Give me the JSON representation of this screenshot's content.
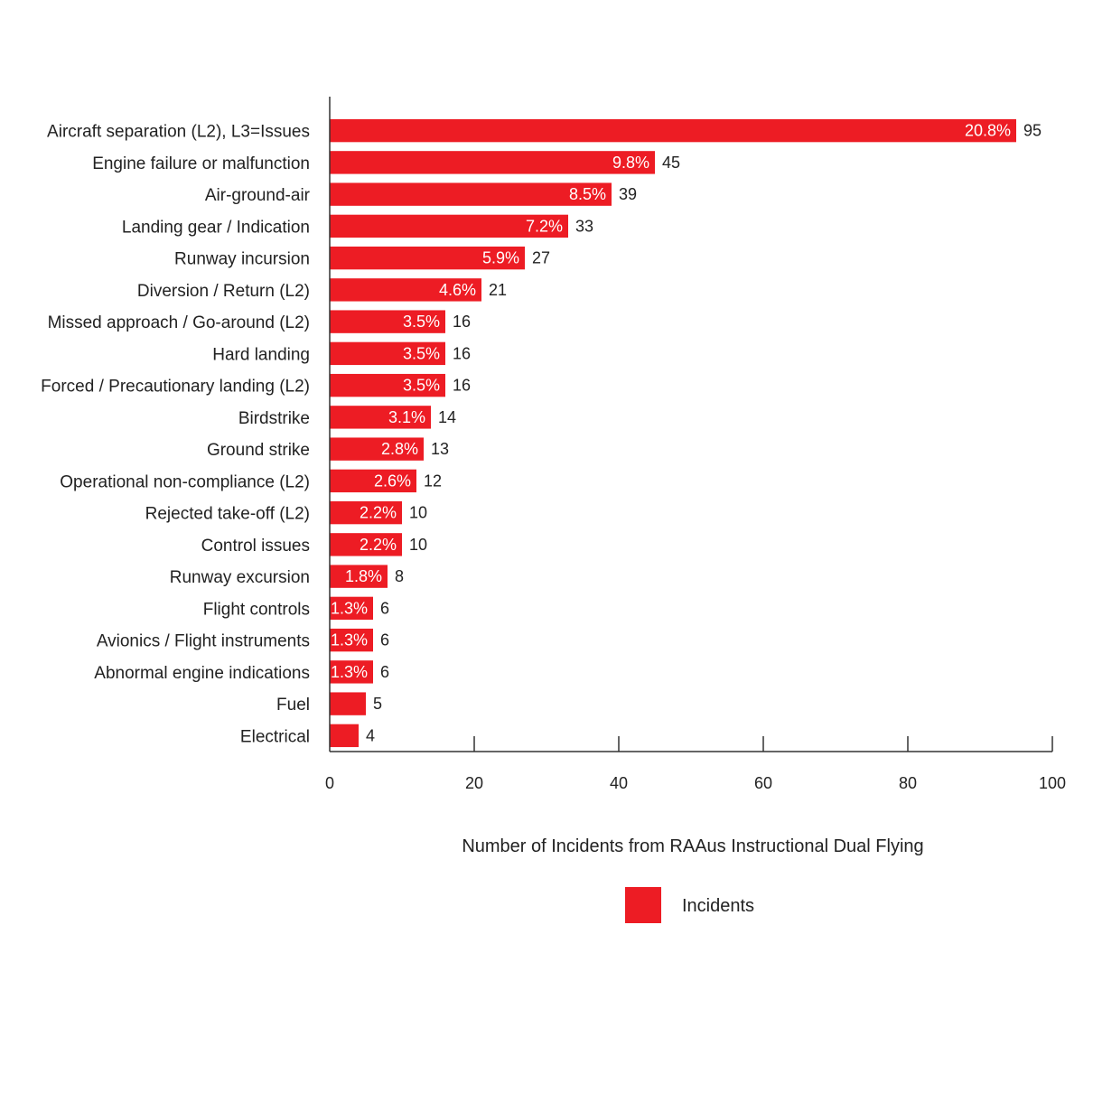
{
  "chart_data": {
    "type": "bar",
    "orientation": "horizontal",
    "categories": [
      "Aircraft separation (L2), L3=Issues",
      "Engine failure or malfunction",
      "Air-ground-air",
      "Landing gear / Indication",
      "Runway incursion",
      "Diversion / Return (L2)",
      "Missed approach / Go-around (L2)",
      "Hard landing",
      "Forced / Precautionary landing (L2)",
      "Birdstrike",
      "Ground strike",
      "Operational non-compliance (L2)",
      "Rejected take-off (L2)",
      "Control issues",
      "Runway excursion",
      "Flight controls",
      "Avionics / Flight instruments",
      "Abnormal engine indications",
      "Fuel",
      "Electrical"
    ],
    "series": [
      {
        "name": "Incidents",
        "color": "#ed1c24",
        "values": [
          95,
          45,
          39,
          33,
          27,
          21,
          16,
          16,
          16,
          14,
          13,
          12,
          10,
          10,
          8,
          6,
          6,
          6,
          5,
          4
        ],
        "percent_labels": [
          "20.8%",
          "9.8%",
          "8.5%",
          "7.2%",
          "5.9%",
          "4.6%",
          "3.5%",
          "3.5%",
          "3.5%",
          "3.1%",
          "2.8%",
          "2.6%",
          "2.2%",
          "2.2%",
          "1.8%",
          "1.3%",
          "1.3%",
          "1.3%",
          "",
          ""
        ]
      }
    ],
    "title": "",
    "xlabel": "Number of Incidents from RAAus Instructional Dual Flying",
    "ylabel": "",
    "xlim": [
      0,
      100
    ],
    "xticks": [
      0,
      20,
      40,
      60,
      80,
      100
    ],
    "grid": false,
    "legend": {
      "placement": "bottom-center",
      "entries": [
        "Incidents"
      ]
    }
  }
}
